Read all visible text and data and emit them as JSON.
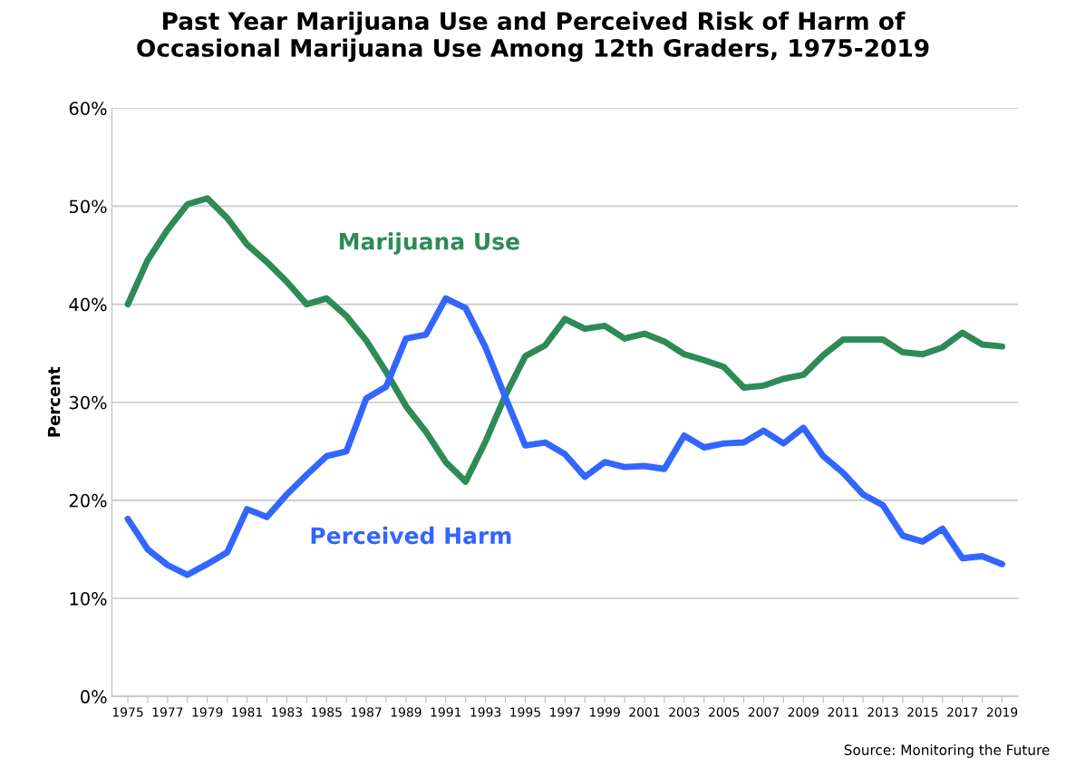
{
  "chart_data": {
    "type": "line",
    "title": "Past Year Marijuana Use and Perceived Risk of Harm of\nOccasional Marijuana Use Among 12th Graders, 1975-2019",
    "ylabel": "Percent",
    "categories": [
      "1975",
      null,
      "1977",
      null,
      "1979",
      null,
      "1981",
      null,
      "1983",
      null,
      "1985",
      null,
      "1987",
      null,
      "1989",
      null,
      "1991",
      null,
      "1993",
      null,
      "1995",
      null,
      "1997",
      null,
      "1999",
      null,
      "2001",
      null,
      "2003",
      null,
      "2005",
      null,
      "2007",
      null,
      "2009",
      null,
      "2011",
      null,
      "2013",
      null,
      "2015",
      null,
      "2017",
      null,
      "2019"
    ],
    "series": [
      {
        "name": "Marijuana Use",
        "color": "#2e8b57",
        "values": [
          40.0,
          44.5,
          47.6,
          50.2,
          50.8,
          48.8,
          46.1,
          44.3,
          42.3,
          40.0,
          40.6,
          38.8,
          36.3,
          33.1,
          29.6,
          27.0,
          23.9,
          21.9,
          26.0,
          30.7,
          34.7,
          35.8,
          38.5,
          37.5,
          37.8,
          36.5,
          37.0,
          36.2,
          34.9,
          34.3,
          33.6,
          31.5,
          31.7,
          32.4,
          32.8,
          34.8,
          36.4,
          36.4,
          36.4,
          35.1,
          34.9,
          35.6,
          37.1,
          35.9,
          35.7
        ]
      },
      {
        "name": "Perceived Harm",
        "color": "#3366ff",
        "values": [
          18.1,
          15.0,
          13.4,
          12.4,
          13.5,
          14.7,
          19.1,
          18.3,
          20.6,
          22.6,
          24.5,
          25.0,
          30.4,
          31.6,
          36.5,
          36.9,
          40.6,
          39.6,
          35.6,
          30.5,
          25.6,
          25.9,
          24.7,
          22.4,
          23.9,
          23.4,
          23.5,
          23.2,
          26.6,
          25.4,
          25.8,
          25.9,
          27.1,
          25.8,
          27.4,
          24.5,
          22.8,
          20.6,
          19.5,
          16.4,
          15.8,
          17.1,
          14.1,
          14.3,
          13.5
        ]
      }
    ],
    "ylim": [
      0,
      60
    ],
    "yticks": [
      {
        "value": 0,
        "label": "0%"
      },
      {
        "value": 10,
        "label": "10%"
      },
      {
        "value": 20,
        "label": "20%"
      },
      {
        "value": 30,
        "label": "30%"
      },
      {
        "value": 40,
        "label": "40%"
      },
      {
        "value": 50,
        "label": "50%"
      },
      {
        "value": 60,
        "label": "60%"
      }
    ],
    "grid": "y",
    "annotations": [
      "Source: Monitoring the Future"
    ]
  }
}
